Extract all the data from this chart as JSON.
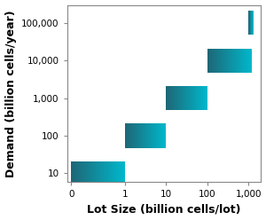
{
  "demands": [
    10,
    100,
    1000,
    10000,
    100000
  ],
  "lot_size_ranges": [
    [
      0.05,
      1
    ],
    [
      1,
      10
    ],
    [
      10,
      100
    ],
    [
      100,
      1200
    ],
    [
      1000,
      1300
    ]
  ],
  "bar_height_factor": 0.32,
  "color_left": "#1e6675",
  "color_right": "#00b8cc",
  "xlabel": "Lot Size (billion cells/lot)",
  "ylabel": "Demand (billion cells/year)",
  "yticks": [
    10,
    100,
    1000,
    10000,
    100000
  ],
  "ytick_labels": [
    "10",
    "100",
    "1,000",
    "10,000",
    "100,000"
  ],
  "xlim_log": [
    0.04,
    2000
  ],
  "ylim_log": [
    6,
    300000
  ],
  "figure_width": 3.0,
  "figure_height": 2.48,
  "dpi": 100,
  "background_color": "#ffffff",
  "spine_color": "#888888",
  "xlabel_fontsize": 9,
  "ylabel_fontsize": 9,
  "tick_fontsize": 7.5
}
